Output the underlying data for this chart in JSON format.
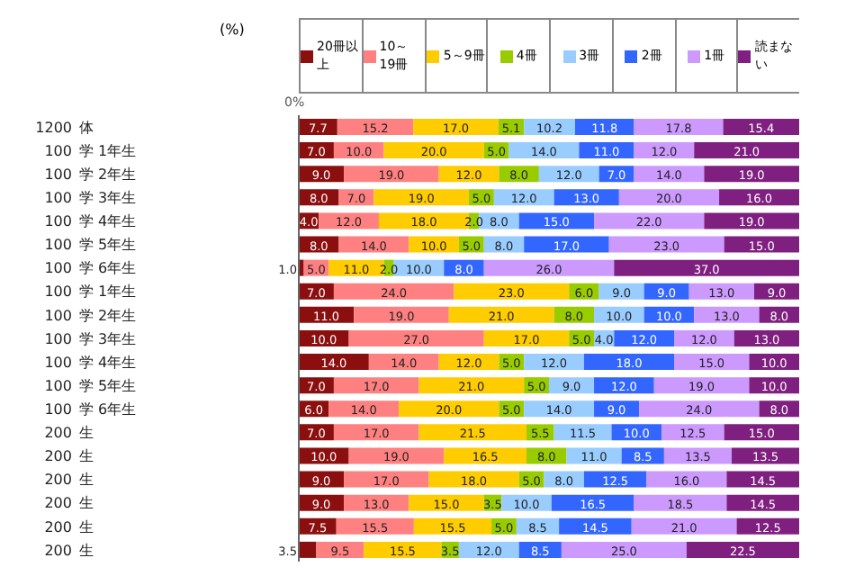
{
  "chart_data": {
    "type": "bar",
    "orientation": "horizontal",
    "stacked": true,
    "legend": "top",
    "xlim": [
      0,
      100
    ],
    "categories": [
      "体",
      "学 1年生",
      "学 2年生",
      "学 3年生",
      "学 4年生",
      "学 5年生",
      "学 6年生",
      "学 1年生",
      "学 2年生",
      "学 3年生",
      "学 4年生",
      "学 5年生",
      "学 6年生",
      "生",
      "生",
      "生",
      "生",
      "生",
      "生"
    ],
    "annotations": [
      "1200",
      "100",
      "100",
      "100",
      "100",
      "100",
      "100",
      "100",
      "100",
      "100",
      "100",
      "100",
      "100",
      "200",
      "200",
      "200",
      "200",
      "200",
      "200",
      "0%",
      "(%)"
    ],
    "series": [
      {
        "name": "20冊以上",
        "color": "#8b0f0f",
        "values": [
          7.7,
          7,
          9,
          8,
          4,
          8,
          1,
          7,
          11,
          10,
          14,
          7,
          6,
          7,
          10,
          9,
          9,
          7.5,
          3.5
        ],
        "value_labels": [
          "7.7",
          "7.0",
          "9.0",
          "8.0",
          "4.0",
          "8.0",
          "1.0",
          "7.0",
          "11.0",
          "10.0",
          "14.0",
          "7.0",
          "6.0",
          "7.0",
          "10.0",
          "9.0",
          "9.0",
          "7.5",
          "3.5"
        ]
      },
      {
        "name": "10～19冊",
        "color": "#ff8080",
        "values": [
          15.2,
          10,
          19,
          7,
          12,
          14,
          5,
          24,
          19,
          27,
          14,
          17,
          14,
          17,
          19,
          17,
          13,
          15.5,
          9.5
        ],
        "value_labels": [
          "15.2",
          "10.0",
          "19.0",
          "7.0",
          "12.0",
          "14.0",
          "5.0",
          "24.0",
          "19.0",
          "27.0",
          "14.0",
          "17.0",
          "14.0",
          "17.0",
          "19.0",
          "17.0",
          "13.0",
          "15.5",
          "9.5"
        ]
      },
      {
        "name": "5～9冊",
        "color": "#ffcc00",
        "values": [
          17,
          20,
          12,
          19,
          18,
          10,
          11,
          23,
          21,
          17,
          12,
          21,
          20,
          21.5,
          16.5,
          18,
          15,
          15.5,
          15.5
        ],
        "value_labels": [
          "17.0",
          "20.0",
          "12.0",
          "19.0",
          "18.0",
          "10.0",
          "11.0",
          "23.0",
          "21.0",
          "17.0",
          "12.0",
          "21.0",
          "20.0",
          "21.5",
          "16.5",
          "18.0",
          "15.0",
          "15.5",
          "15.5"
        ]
      },
      {
        "name": "4冊",
        "color": "#99cc00",
        "values": [
          5.1,
          5,
          8,
          5,
          2,
          5,
          2,
          6,
          8,
          5,
          5,
          5,
          5,
          5.5,
          8,
          5,
          3.5,
          5,
          3.5
        ],
        "value_labels": [
          "5.1",
          "5.0",
          "8.0",
          "5.0",
          "2.0",
          "5.0",
          "2.0",
          "6.0",
          "8.0",
          "5.0",
          "5.0",
          "5.0",
          "5.0",
          "5.5",
          "8.0",
          "5.0",
          "3.5",
          "5.0",
          "3.5"
        ]
      },
      {
        "name": "3冊",
        "color": "#99ccff",
        "values": [
          10.2,
          14,
          12,
          12,
          8,
          8,
          10,
          9,
          10,
          4,
          12,
          9,
          14,
          11.5,
          11,
          8,
          10,
          8.5,
          12
        ],
        "value_labels": [
          "10.2",
          "14.0",
          "12.0",
          "12.0",
          "8.0",
          "8.0",
          "10.0",
          "9.0",
          "10.0",
          "4.0",
          "12.0",
          "9.0",
          "14.0",
          "11.5",
          "11.0",
          "8.0",
          "10.0",
          "8.5",
          "12.0"
        ]
      },
      {
        "name": "2冊",
        "color": "#3366ff",
        "values": [
          11.8,
          11,
          7,
          13,
          15,
          17,
          8,
          9,
          10,
          12,
          18,
          12,
          9,
          10,
          8.5,
          12.5,
          16.5,
          14.5,
          8.5
        ],
        "value_labels": [
          "11.8",
          "11.0",
          "7.0",
          "13.0",
          "15.0",
          "17.0",
          "8.0",
          "9.0",
          "10.0",
          "12.0",
          "18.0",
          "12.0",
          "9.0",
          "10.0",
          "8.5",
          "12.5",
          "16.5",
          "14.5",
          "8.5"
        ]
      },
      {
        "name": "1冊",
        "color": "#cc99ff",
        "values": [
          17.8,
          12,
          14,
          20,
          22,
          23,
          26,
          13,
          13,
          12,
          15,
          19,
          24,
          12.5,
          13.5,
          16,
          18.5,
          21,
          25
        ],
        "value_labels": [
          "17.8",
          "12.0",
          "14.0",
          "20.0",
          "22.0",
          "23.0",
          "26.0",
          "13.0",
          "13.0",
          "12.0",
          "15.0",
          "19.0",
          "24.0",
          "12.5",
          "13.5",
          "16.0",
          "18.5",
          "21.0",
          "25.0"
        ]
      },
      {
        "name": "読まない",
        "color": "#7f1f7f",
        "values": [
          15.4,
          21,
          19,
          16,
          19,
          15,
          37,
          9,
          8,
          13,
          10,
          10,
          8,
          15,
          13.5,
          14.5,
          14.5,
          12.5,
          22.5
        ],
        "value_labels": [
          "15.4",
          "21.0",
          "19.0",
          "16.0",
          "19.0",
          "15.0",
          "37.0",
          "9.0",
          "8.0",
          "13.0",
          "10.0",
          "10.0",
          "8.0",
          "15.0",
          "13.5",
          "14.5",
          "14.5",
          "12.5",
          "22.5"
        ]
      }
    ]
  }
}
